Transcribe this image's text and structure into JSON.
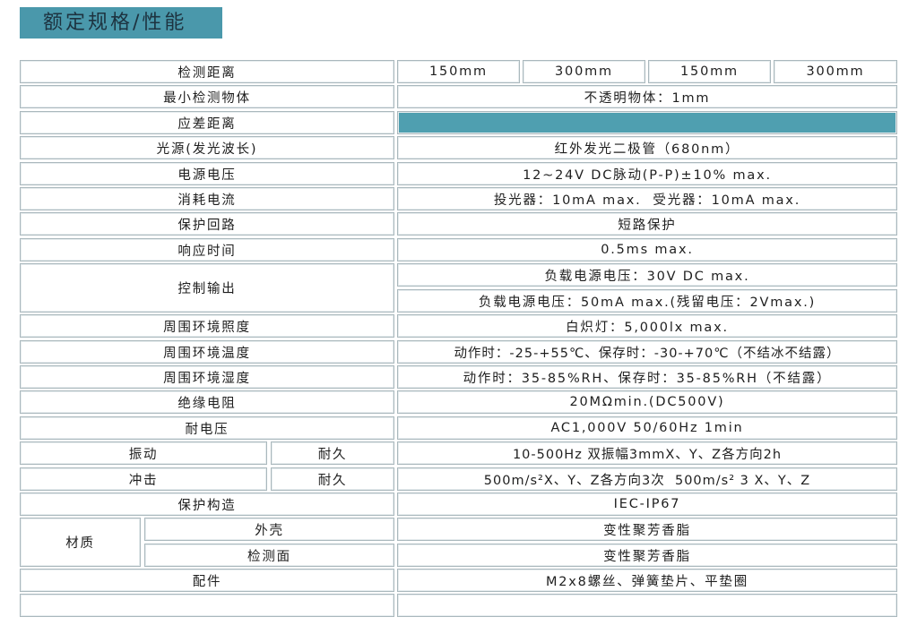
{
  "title": "额定规格/性能",
  "colors": {
    "accent": "#4a98ab"
  },
  "rows": {
    "detect_distance": {
      "label": "检测距离",
      "values": [
        "150mm",
        "300mm",
        "150mm",
        "300mm"
      ]
    },
    "min_object": {
      "label": "最小检测物体",
      "value": "不透明物体：1mm"
    },
    "hysteresis": {
      "label": "应差距离",
      "value": ""
    },
    "light_source": {
      "label": "光源(发光波长)",
      "value": "红外发光二极管（680nm）"
    },
    "supply_voltage": {
      "label": "电源电压",
      "value": "12~24V DC脉动(P-P)±10% max."
    },
    "current": {
      "label": "消耗电流",
      "value": "投光器：10mA max.  受光器：10mA max."
    },
    "protection_circuit": {
      "label": "保护回路",
      "value": "短路保护"
    },
    "response_time": {
      "label": "响应时间",
      "value": "0.5ms max."
    },
    "control_output": {
      "label": "控制输出",
      "values": [
        "负载电源电压：30V DC max.",
        "负载电源电压：50mA max.(残留电压：2Vmax.)"
      ]
    },
    "illuminance": {
      "label": "周围环境照度",
      "value": "白炽灯：5,000lx max."
    },
    "temperature": {
      "label": "周围环境温度",
      "value": "动作时：-25-+55℃、保存时：-30-+70℃（不结冰不结露）"
    },
    "humidity": {
      "label": "周围环境湿度",
      "value": "动作时：35-85%RH、保存时：35-85%RH（不结露）"
    },
    "insulation": {
      "label": "绝缘电阻",
      "value": "20MΩmin.(DC500V)"
    },
    "withstand_voltage": {
      "label": "耐电压",
      "value": "AC1,000V 50/60Hz 1min"
    },
    "vibration": {
      "label": "振动",
      "sub": "耐久",
      "value": "10-500Hz 双振幅3mmX、Y、Z各方向2h"
    },
    "shock": {
      "label": "冲击",
      "sub": "耐久",
      "value": "500m/s²X、Y、Z各方向3次  500m/s² 3 X、Y、Z"
    },
    "protection_structure": {
      "label": "保护构造",
      "value": "IEC-IP67"
    },
    "material": {
      "label": "材质",
      "case_label": "外壳",
      "case_value": "变性聚芳香脂",
      "face_label": "检测面",
      "face_value": "变性聚芳香脂"
    },
    "accessories": {
      "label": "配件",
      "value": "M2x8螺丝、弹簧垫片、平垫圈"
    }
  }
}
